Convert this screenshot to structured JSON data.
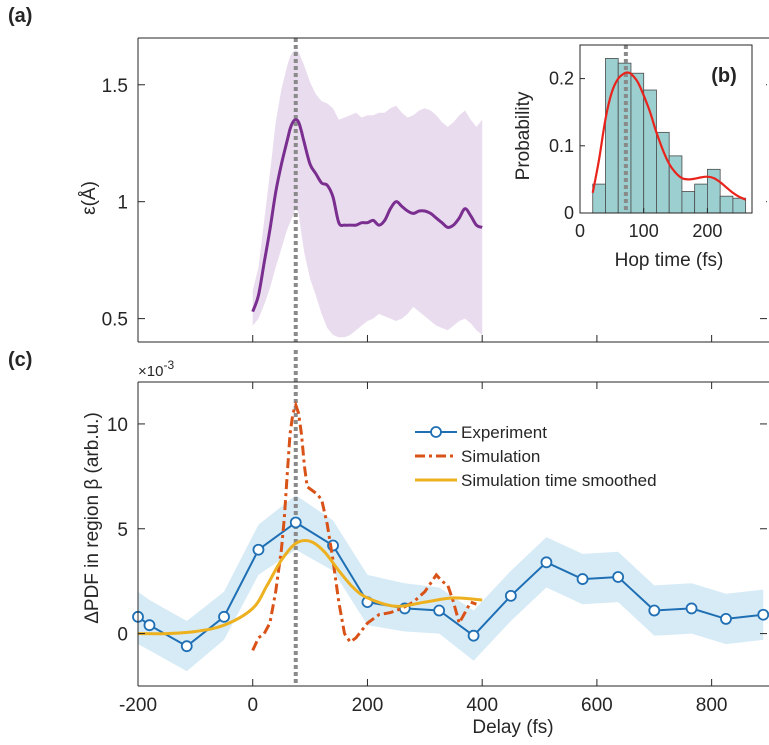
{
  "panel_labels": {
    "a": "(a)",
    "b": "(b)",
    "c": "(c)"
  },
  "colors": {
    "epsilon_line": "#7a2e8f",
    "epsilon_band": "#e9dcee",
    "dotted_marker": "#8a8a8a",
    "hist_bar": "#9ccfd0",
    "hist_edge": "#4a4a4a",
    "hist_fit": "#e8241c",
    "experiment": "#1f6fb4",
    "experiment_band": "#d7ebf6",
    "simulation": "#d95319",
    "smoothed": "#edb120"
  },
  "chart_data": [
    {
      "id": "a",
      "type": "line",
      "title": "",
      "xlabel": "",
      "ylabel": "ε(Å)",
      "xlim": [
        -200,
        900
      ],
      "ylim": [
        0.4,
        1.7
      ],
      "yticks": [
        0.5,
        1,
        1.5
      ],
      "ytick_labels": [
        "0.5",
        "1",
        "1.5"
      ],
      "xticks": [
        -200,
        0,
        200,
        400,
        600,
        800
      ],
      "vline_x": 75,
      "series": [
        {
          "x": [
            0,
            10,
            20,
            30,
            40,
            50,
            60,
            65,
            70,
            75,
            80,
            85,
            90,
            100,
            110,
            120,
            130,
            140,
            150,
            160,
            170,
            180,
            190,
            200,
            210,
            220,
            230,
            240,
            250,
            260,
            270,
            280,
            290,
            300,
            310,
            320,
            330,
            340,
            350,
            360,
            370,
            380,
            390,
            400
          ],
          "y": [
            0.53,
            0.6,
            0.74,
            0.88,
            1.04,
            1.16,
            1.26,
            1.31,
            1.34,
            1.35,
            1.34,
            1.3,
            1.25,
            1.16,
            1.12,
            1.08,
            1.07,
            1.02,
            0.91,
            0.9,
            0.9,
            0.9,
            0.91,
            0.91,
            0.92,
            0.9,
            0.92,
            0.97,
            1.0,
            0.98,
            0.96,
            0.95,
            0.96,
            0.96,
            0.95,
            0.93,
            0.91,
            0.89,
            0.9,
            0.93,
            0.97,
            0.94,
            0.9,
            0.89
          ],
          "lower": [
            0.47,
            0.5,
            0.56,
            0.63,
            0.72,
            0.8,
            0.88,
            0.91,
            0.94,
            0.97,
            0.95,
            0.86,
            0.78,
            0.67,
            0.6,
            0.52,
            0.46,
            0.43,
            0.42,
            0.42,
            0.43,
            0.45,
            0.47,
            0.49,
            0.5,
            0.52,
            0.51,
            0.5,
            0.49,
            0.5,
            0.52,
            0.55,
            0.53,
            0.51,
            0.49,
            0.47,
            0.46,
            0.45,
            0.47,
            0.49,
            0.5,
            0.48,
            0.45,
            0.43
          ],
          "upper": [
            0.62,
            0.72,
            0.92,
            1.12,
            1.34,
            1.48,
            1.58,
            1.62,
            1.64,
            1.65,
            1.64,
            1.61,
            1.58,
            1.51,
            1.46,
            1.43,
            1.42,
            1.4,
            1.35,
            1.36,
            1.37,
            1.38,
            1.36,
            1.37,
            1.37,
            1.38,
            1.38,
            1.4,
            1.41,
            1.38,
            1.36,
            1.37,
            1.39,
            1.4,
            1.39,
            1.37,
            1.34,
            1.32,
            1.34,
            1.37,
            1.39,
            1.35,
            1.32,
            1.35
          ]
        }
      ]
    },
    {
      "id": "b",
      "type": "bar",
      "title": "",
      "xlabel": "Hop time (fs)",
      "ylabel": "Probability",
      "xlim": [
        0,
        270
      ],
      "ylim": [
        0,
        0.25
      ],
      "xticks": [
        0,
        100,
        200
      ],
      "xtick_labels": [
        "0",
        "100",
        "200"
      ],
      "yticks": [
        0,
        0.1,
        0.2
      ],
      "ytick_labels": [
        "0",
        "0.1",
        "0.2"
      ],
      "vline_x": 72,
      "bin_edges": [
        20,
        40,
        60,
        80,
        100,
        120,
        140,
        160,
        180,
        200,
        220,
        240,
        260
      ],
      "values": [
        0.043,
        0.23,
        0.223,
        0.208,
        0.183,
        0.12,
        0.085,
        0.032,
        0.043,
        0.065,
        0.025,
        0.022
      ],
      "fit": {
        "x": [
          20,
          30,
          40,
          50,
          60,
          70,
          75,
          80,
          90,
          100,
          110,
          120,
          130,
          140,
          150,
          160,
          170,
          180,
          190,
          200,
          210,
          220,
          230,
          240,
          250,
          260
        ],
        "y": [
          0.03,
          0.08,
          0.14,
          0.18,
          0.2,
          0.208,
          0.209,
          0.207,
          0.196,
          0.175,
          0.15,
          0.12,
          0.094,
          0.073,
          0.06,
          0.052,
          0.05,
          0.051,
          0.053,
          0.054,
          0.052,
          0.046,
          0.038,
          0.03,
          0.024,
          0.02
        ]
      }
    },
    {
      "id": "c",
      "type": "line",
      "title": "",
      "xlabel": "Delay (fs)",
      "ylabel": "ΔPDF in region β (arb.u.)",
      "y_multiplier": "×10",
      "y_multiplier_exp": "-3",
      "xlim": [
        -200,
        900
      ],
      "ylim": [
        -2.5,
        12
      ],
      "xticks": [
        -200,
        0,
        200,
        400,
        600,
        800
      ],
      "xtick_labels": [
        "-200",
        "0",
        "200",
        "400",
        "600",
        "800"
      ],
      "yticks": [
        0,
        5,
        10
      ],
      "ytick_labels": [
        "0",
        "5",
        "10"
      ],
      "vline_x": 75,
      "legend_position": "top-right",
      "series": [
        {
          "name": "Experiment",
          "x": [
            -200,
            -180,
            -115,
            -50,
            10,
            75,
            140,
            200,
            265,
            325,
            385,
            450,
            512,
            575,
            637,
            700,
            765,
            825,
            890
          ],
          "y": [
            0.8,
            0.4,
            -0.6,
            0.8,
            4.0,
            5.3,
            4.2,
            1.5,
            1.2,
            1.1,
            -0.1,
            1.8,
            3.4,
            2.6,
            2.7,
            1.1,
            1.2,
            0.7,
            0.9
          ],
          "lower": [
            -0.5,
            -0.8,
            -1.8,
            -0.3,
            2.8,
            4.0,
            3.0,
            0.4,
            0.1,
            0.0,
            -1.3,
            0.6,
            2.2,
            1.4,
            1.5,
            -0.1,
            0.0,
            -0.5,
            -0.3
          ],
          "upper": [
            2.0,
            1.6,
            0.6,
            2.0,
            5.2,
            6.6,
            5.4,
            2.8,
            2.4,
            2.2,
            1.1,
            3.0,
            4.6,
            3.8,
            3.9,
            2.3,
            2.4,
            1.9,
            2.1
          ]
        },
        {
          "name": "Simulation",
          "x": [
            0,
            10,
            20,
            30,
            40,
            50,
            55,
            60,
            65,
            70,
            75,
            80,
            85,
            90,
            95,
            100,
            110,
            120,
            130,
            140,
            150,
            160,
            170,
            180,
            200,
            220,
            240,
            260,
            280,
            300,
            310,
            320,
            330,
            340,
            350,
            360,
            370,
            380,
            390
          ],
          "y": [
            -0.8,
            -0.2,
            0.0,
            0.5,
            2.0,
            4.0,
            5.5,
            7.5,
            9.5,
            10.5,
            10.9,
            10.5,
            9.5,
            8.0,
            7.0,
            6.9,
            6.7,
            6.4,
            5.2,
            3.5,
            1.5,
            0.0,
            -0.4,
            -0.2,
            0.5,
            0.9,
            1.0,
            1.2,
            1.5,
            2.0,
            2.4,
            2.8,
            2.5,
            2.3,
            1.5,
            0.5,
            1.0,
            1.5,
            1.4
          ]
        },
        {
          "name": "Simulation time smoothed",
          "x": [
            -200,
            -150,
            -100,
            -50,
            0,
            25,
            50,
            75,
            100,
            125,
            150,
            175,
            200,
            250,
            300,
            350,
            400
          ],
          "y": [
            0.0,
            0.0,
            0.1,
            0.4,
            1.2,
            2.3,
            3.5,
            4.3,
            4.4,
            3.9,
            3.0,
            2.2,
            1.7,
            1.3,
            1.5,
            1.7,
            1.6
          ]
        }
      ]
    }
  ]
}
